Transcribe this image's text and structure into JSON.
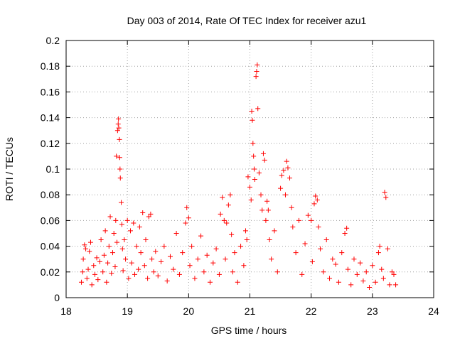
{
  "chart_data": {
    "type": "scatter",
    "title": "Day 003 of 2014, Rate Of TEC Index for receiver azu1",
    "xlabel": "GPS time / hours",
    "ylabel": "ROTI / TECUs",
    "xlim": [
      18,
      24
    ],
    "ylim": [
      0,
      0.2
    ],
    "xticks": [
      18,
      19,
      20,
      21,
      22,
      23,
      24
    ],
    "yticks": [
      0,
      0.02,
      0.04,
      0.06,
      0.08,
      0.1,
      0.12,
      0.14,
      0.16,
      0.18,
      0.2
    ],
    "xtick_labels": [
      "18",
      "19",
      "20",
      "21",
      "22",
      "23",
      "24"
    ],
    "ytick_labels": [
      "0",
      "0.02",
      "0.04",
      "0.06",
      "0.08",
      "0.1",
      "0.12",
      "0.14",
      "0.16",
      "0.18",
      "0.2"
    ],
    "grid": true,
    "marker": "plus",
    "series": [
      {
        "name": "azu1",
        "color": "#ff0000",
        "points": [
          [
            18.25,
            0.012
          ],
          [
            18.27,
            0.02
          ],
          [
            18.28,
            0.03
          ],
          [
            18.3,
            0.041
          ],
          [
            18.32,
            0.038
          ],
          [
            18.34,
            0.015
          ],
          [
            18.36,
            0.022
          ],
          [
            18.38,
            0.036
          ],
          [
            18.4,
            0.043
          ],
          [
            18.42,
            0.01
          ],
          [
            18.45,
            0.025
          ],
          [
            18.47,
            0.018
          ],
          [
            18.5,
            0.031
          ],
          [
            18.52,
            0.014
          ],
          [
            18.55,
            0.028
          ],
          [
            18.57,
            0.045
          ],
          [
            18.6,
            0.02
          ],
          [
            18.62,
            0.033
          ],
          [
            18.64,
            0.052
          ],
          [
            18.66,
            0.012
          ],
          [
            18.68,
            0.027
          ],
          [
            18.7,
            0.04
          ],
          [
            18.72,
            0.063
          ],
          [
            18.74,
            0.019
          ],
          [
            18.76,
            0.035
          ],
          [
            18.78,
            0.05
          ],
          [
            18.8,
            0.024
          ],
          [
            18.81,
            0.06
          ],
          [
            18.82,
            0.11
          ],
          [
            18.83,
            0.043
          ],
          [
            18.84,
            0.13
          ],
          [
            18.85,
            0.135
          ],
          [
            18.855,
            0.139
          ],
          [
            18.86,
            0.132
          ],
          [
            18.87,
            0.123
          ],
          [
            18.875,
            0.109
          ],
          [
            18.88,
            0.1
          ],
          [
            18.885,
            0.093
          ],
          [
            18.9,
            0.074
          ],
          [
            18.91,
            0.057
          ],
          [
            18.92,
            0.038
          ],
          [
            18.93,
            0.021
          ],
          [
            18.95,
            0.045
          ],
          [
            18.97,
            0.03
          ],
          [
            19.0,
            0.06
          ],
          [
            19.02,
            0.015
          ],
          [
            19.05,
            0.052
          ],
          [
            19.07,
            0.027
          ],
          [
            19.1,
            0.058
          ],
          [
            19.12,
            0.018
          ],
          [
            19.15,
            0.04
          ],
          [
            19.18,
            0.022
          ],
          [
            19.2,
            0.055
          ],
          [
            19.22,
            0.035
          ],
          [
            19.25,
            0.066
          ],
          [
            19.28,
            0.025
          ],
          [
            19.3,
            0.045
          ],
          [
            19.33,
            0.015
          ],
          [
            19.35,
            0.063
          ],
          [
            19.38,
            0.065
          ],
          [
            19.4,
            0.03
          ],
          [
            19.43,
            0.02
          ],
          [
            19.46,
            0.036
          ],
          [
            19.5,
            0.017
          ],
          [
            19.55,
            0.028
          ],
          [
            19.6,
            0.04
          ],
          [
            19.65,
            0.013
          ],
          [
            19.7,
            0.032
          ],
          [
            19.75,
            0.022
          ],
          [
            19.8,
            0.05
          ],
          [
            19.85,
            0.018
          ],
          [
            19.9,
            0.035
          ],
          [
            19.95,
            0.058
          ],
          [
            19.97,
            0.07
          ],
          [
            20.0,
            0.062
          ],
          [
            20.02,
            0.025
          ],
          [
            20.05,
            0.04
          ],
          [
            20.1,
            0.015
          ],
          [
            20.15,
            0.03
          ],
          [
            20.2,
            0.048
          ],
          [
            20.25,
            0.02
          ],
          [
            20.3,
            0.033
          ],
          [
            20.35,
            0.012
          ],
          [
            20.4,
            0.027
          ],
          [
            20.45,
            0.038
          ],
          [
            20.5,
            0.018
          ],
          [
            20.52,
            0.065
          ],
          [
            20.55,
            0.078
          ],
          [
            20.58,
            0.06
          ],
          [
            20.6,
            0.03
          ],
          [
            20.62,
            0.058
          ],
          [
            20.65,
            0.072
          ],
          [
            20.68,
            0.08
          ],
          [
            20.7,
            0.049
          ],
          [
            20.72,
            0.02
          ],
          [
            20.75,
            0.035
          ],
          [
            20.8,
            0.012
          ],
          [
            20.85,
            0.04
          ],
          [
            20.9,
            0.025
          ],
          [
            20.93,
            0.052
          ],
          [
            20.95,
            0.045
          ],
          [
            20.97,
            0.094
          ],
          [
            21.0,
            0.086
          ],
          [
            21.02,
            0.076
          ],
          [
            21.03,
            0.145
          ],
          [
            21.04,
            0.138
          ],
          [
            21.05,
            0.12
          ],
          [
            21.06,
            0.11
          ],
          [
            21.07,
            0.1
          ],
          [
            21.08,
            0.092
          ],
          [
            21.1,
            0.172
          ],
          [
            21.11,
            0.176
          ],
          [
            21.12,
            0.181
          ],
          [
            21.13,
            0.147
          ],
          [
            21.15,
            0.097
          ],
          [
            21.18,
            0.08
          ],
          [
            21.2,
            0.068
          ],
          [
            21.22,
            0.112
          ],
          [
            21.24,
            0.107
          ],
          [
            21.26,
            0.06
          ],
          [
            21.28,
            0.075
          ],
          [
            21.3,
            0.068
          ],
          [
            21.32,
            0.045
          ],
          [
            21.35,
            0.03
          ],
          [
            21.4,
            0.052
          ],
          [
            21.45,
            0.02
          ],
          [
            21.5,
            0.085
          ],
          [
            21.52,
            0.095
          ],
          [
            21.55,
            0.099
          ],
          [
            21.58,
            0.08
          ],
          [
            21.6,
            0.106
          ],
          [
            21.62,
            0.101
          ],
          [
            21.65,
            0.093
          ],
          [
            21.68,
            0.07
          ],
          [
            21.7,
            0.055
          ],
          [
            21.75,
            0.035
          ],
          [
            21.8,
            0.06
          ],
          [
            21.85,
            0.018
          ],
          [
            21.9,
            0.042
          ],
          [
            21.95,
            0.064
          ],
          [
            22.0,
            0.06
          ],
          [
            22.02,
            0.028
          ],
          [
            22.05,
            0.073
          ],
          [
            22.07,
            0.079
          ],
          [
            22.1,
            0.076
          ],
          [
            22.12,
            0.055
          ],
          [
            22.15,
            0.038
          ],
          [
            22.2,
            0.02
          ],
          [
            22.25,
            0.045
          ],
          [
            22.3,
            0.015
          ],
          [
            22.35,
            0.03
          ],
          [
            22.4,
            0.026
          ],
          [
            22.45,
            0.012
          ],
          [
            22.5,
            0.035
          ],
          [
            22.55,
            0.05
          ],
          [
            22.58,
            0.054
          ],
          [
            22.6,
            0.022
          ],
          [
            22.65,
            0.01
          ],
          [
            22.7,
            0.03
          ],
          [
            22.75,
            0.018
          ],
          [
            22.8,
            0.027
          ],
          [
            22.85,
            0.013
          ],
          [
            22.9,
            0.02
          ],
          [
            22.95,
            0.008
          ],
          [
            23.0,
            0.025
          ],
          [
            23.05,
            0.012
          ],
          [
            23.1,
            0.035
          ],
          [
            23.12,
            0.04
          ],
          [
            23.15,
            0.022
          ],
          [
            23.18,
            0.015
          ],
          [
            23.2,
            0.082
          ],
          [
            23.22,
            0.078
          ],
          [
            23.25,
            0.038
          ],
          [
            23.28,
            0.01
          ],
          [
            23.32,
            0.02
          ],
          [
            23.35,
            0.018
          ],
          [
            23.38,
            0.01
          ]
        ]
      }
    ]
  }
}
